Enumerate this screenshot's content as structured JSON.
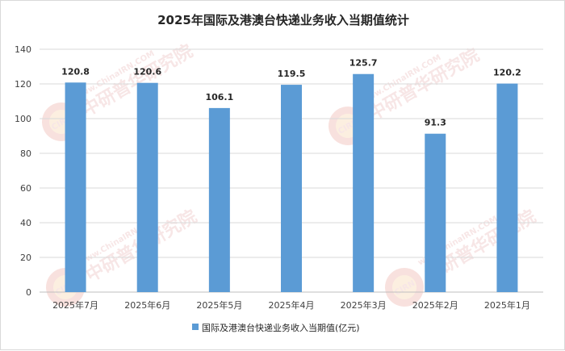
{
  "chart_data": {
    "type": "bar",
    "title": "2025年国际及港澳台快递业务收入当期值统计",
    "categories": [
      "2025年7月",
      "2025年6月",
      "2025年5月",
      "2025年4月",
      "2025年3月",
      "2025年2月",
      "2025年1月"
    ],
    "series": [
      {
        "name": "国际及港澳台快递业务收入当期值(亿元)",
        "values": [
          120.8,
          120.6,
          106.1,
          119.5,
          125.7,
          91.3,
          120.2
        ]
      }
    ],
    "value_labels": [
      "120.8",
      "120.6",
      "106.1",
      "119.5",
      "125.7",
      "91.3",
      "120.2"
    ],
    "ylim": [
      0,
      140
    ],
    "yticks": [
      0,
      20,
      40,
      60,
      80,
      100,
      120,
      140
    ],
    "grid": true,
    "legend_position": "bottom",
    "colors": {
      "bar": "#5b9bd5",
      "grid": "#d9d9d9",
      "axis": "#bfbfbf"
    }
  },
  "watermark": {
    "brand_cn": "中研普华研究院",
    "brand_url": "www.ChinaIRN.COM",
    "logo_text": "CIRN"
  }
}
